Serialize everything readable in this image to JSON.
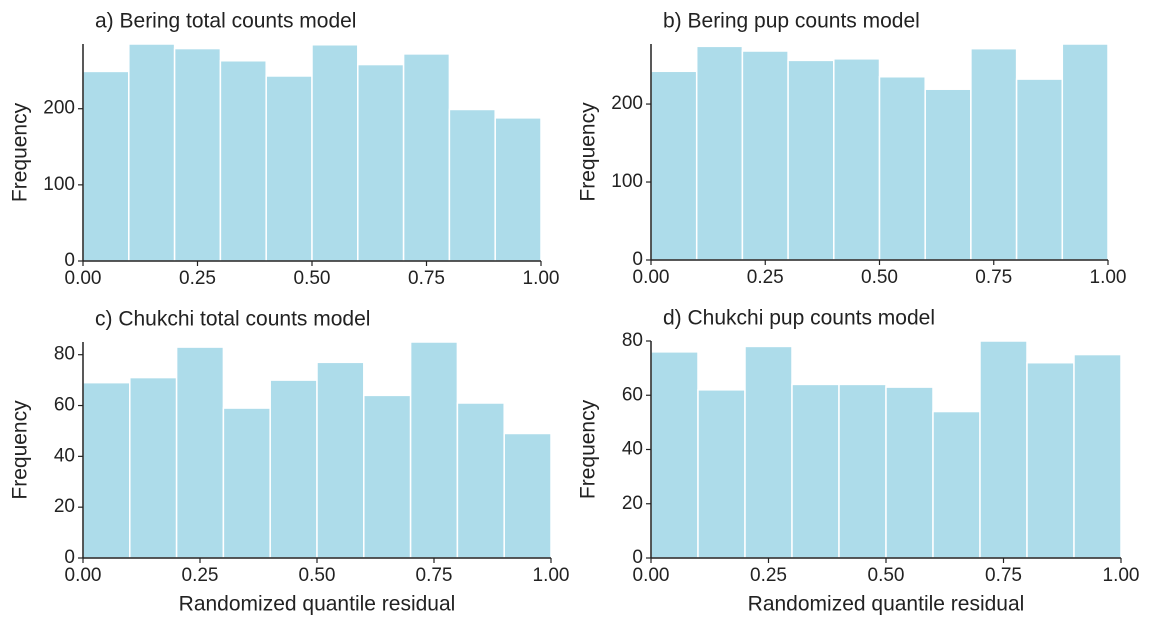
{
  "chart_data": [
    {
      "type": "histogram",
      "title": "a)  Bering total counts model",
      "y_label": "Frequency",
      "bins": [
        0,
        0.1,
        0.2,
        0.3,
        0.4,
        0.5,
        0.6,
        0.7,
        0.8,
        0.9,
        1.0
      ],
      "values": [
        249,
        285,
        279,
        263,
        243,
        284,
        258,
        272,
        199,
        188
      ],
      "color": "#addcea",
      "xlim": [
        0,
        1
      ],
      "xticks": [
        {
          "value": 0,
          "label": "0.00"
        },
        {
          "value": 0.25,
          "label": "0.25"
        },
        {
          "value": 0.5,
          "label": "0.50"
        },
        {
          "value": 0.75,
          "label": "0.75"
        },
        {
          "value": 1,
          "label": "1.00"
        }
      ],
      "ylim": [
        0,
        285
      ],
      "yticks": [
        0,
        100,
        200
      ]
    },
    {
      "type": "histogram",
      "title": "b)  Bering pup counts model",
      "y_label": "Frequency",
      "bins": [
        0,
        0.1,
        0.2,
        0.3,
        0.4,
        0.5,
        0.6,
        0.7,
        0.8,
        0.9,
        1.0
      ],
      "values": [
        242,
        274,
        268,
        256,
        258,
        235,
        219,
        271,
        232,
        277
      ],
      "color": "#addcea",
      "xlim": [
        0,
        1
      ],
      "xticks": [
        {
          "value": 0,
          "label": "0.00"
        },
        {
          "value": 0.25,
          "label": "0.25"
        },
        {
          "value": 0.5,
          "label": "0.50"
        },
        {
          "value": 0.75,
          "label": "0.75"
        },
        {
          "value": 1,
          "label": "1.00"
        }
      ],
      "ylim": [
        0,
        277
      ],
      "yticks": [
        0,
        100,
        200
      ]
    },
    {
      "type": "histogram",
      "title": "c)  Chukchi total counts model",
      "y_label": "Frequency",
      "x_label": "Randomized quantile residual",
      "bins": [
        0,
        0.1,
        0.2,
        0.3,
        0.4,
        0.5,
        0.6,
        0.7,
        0.8,
        0.9,
        1.0
      ],
      "values": [
        69,
        71,
        83,
        59,
        70,
        77,
        64,
        85,
        61,
        49
      ],
      "color": "#addcea",
      "xlim": [
        0,
        1
      ],
      "xticks": [
        {
          "value": 0,
          "label": "0.00"
        },
        {
          "value": 0.25,
          "label": "0.25"
        },
        {
          "value": 0.5,
          "label": "0.50"
        },
        {
          "value": 0.75,
          "label": "0.75"
        },
        {
          "value": 1,
          "label": "1.00"
        }
      ],
      "ylim": [
        0,
        85
      ],
      "yticks": [
        0,
        20,
        40,
        60,
        80
      ]
    },
    {
      "type": "histogram",
      "title": "d)  Chukchi pup counts model",
      "y_label": "Frequency",
      "x_label": "Randomized quantile residual",
      "bins": [
        0,
        0.1,
        0.2,
        0.3,
        0.4,
        0.5,
        0.6,
        0.7,
        0.8,
        0.9,
        1.0
      ],
      "values": [
        76,
        62,
        78,
        64,
        64,
        63,
        54,
        80,
        72,
        75
      ],
      "color": "#addcea",
      "xlim": [
        0,
        1
      ],
      "xticks": [
        {
          "value": 0,
          "label": "0.00"
        },
        {
          "value": 0.25,
          "label": "0.25"
        },
        {
          "value": 0.5,
          "label": "0.50"
        },
        {
          "value": 0.75,
          "label": "0.75"
        },
        {
          "value": 1,
          "label": "1.00"
        }
      ],
      "ylim": [
        0,
        80
      ],
      "yticks": [
        0,
        20,
        40,
        60,
        80
      ]
    }
  ]
}
